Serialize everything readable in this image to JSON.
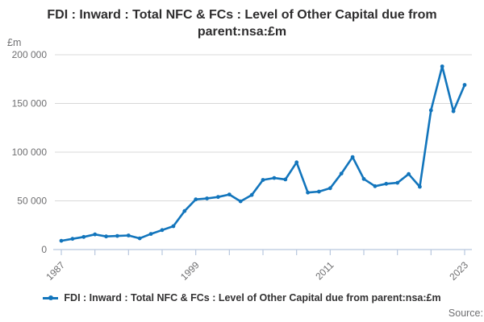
{
  "header": {
    "title": "FDI : Inward : Total NFC & FCs : Level of Other Capital due from parent:nsa:£m"
  },
  "legend": {
    "label": "FDI : Inward : Total NFC & FCs : Level of Other Capital due from parent:nsa:£m"
  },
  "footer": {
    "source_label": "Source:"
  },
  "colors": {
    "line": "#1275bc",
    "grid": "#d8d8d8",
    "axis": "#b8c7de",
    "muted_text": "#6f6f71",
    "dark_text": "#2e2d2e"
  },
  "chart_data": {
    "type": "line",
    "title": "FDI : Inward : Total NFC & FCs : Level of Other Capital due from parent:nsa:£m",
    "xlabel": "",
    "ylabel": "£m",
    "ylim": [
      0,
      200000
    ],
    "grid": "horizontal",
    "legend_position": "bottom",
    "x": [
      1987,
      1988,
      1989,
      1990,
      1991,
      1992,
      1993,
      1994,
      1995,
      1996,
      1997,
      1998,
      1999,
      2000,
      2001,
      2002,
      2003,
      2004,
      2005,
      2006,
      2007,
      2008,
      2009,
      2010,
      2011,
      2012,
      2013,
      2014,
      2015,
      2016,
      2017,
      2018,
      2019,
      2020,
      2021,
      2022,
      2023
    ],
    "series": [
      {
        "name": "FDI : Inward : Total NFC & FCs : Level of Other Capital due from parent:nsa:£m",
        "color": "#1275bc",
        "values": [
          9000,
          11000,
          13000,
          15500,
          13500,
          14000,
          14500,
          11500,
          16000,
          20000,
          24000,
          39500,
          51500,
          52500,
          54000,
          56500,
          49500,
          56000,
          71500,
          73500,
          72000,
          89500,
          58500,
          59500,
          63000,
          78000,
          95000,
          72500,
          65000,
          67500,
          68500,
          77500,
          64500,
          143000,
          188000,
          142000,
          169000
        ]
      }
    ],
    "yticks": [
      {
        "value": 0,
        "label": "0"
      },
      {
        "value": 50000,
        "label": "50 000"
      },
      {
        "value": 100000,
        "label": "100 000"
      },
      {
        "value": 150000,
        "label": "150 000"
      },
      {
        "value": 200000,
        "label": "200 000"
      }
    ],
    "xticks": [
      1987,
      1990,
      1993,
      1996,
      1999,
      2002,
      2005,
      2008,
      2011,
      2014,
      2017,
      2020,
      2023
    ],
    "xtick_labels_shown": [
      "1987",
      "1999",
      "2011",
      "2023"
    ]
  }
}
